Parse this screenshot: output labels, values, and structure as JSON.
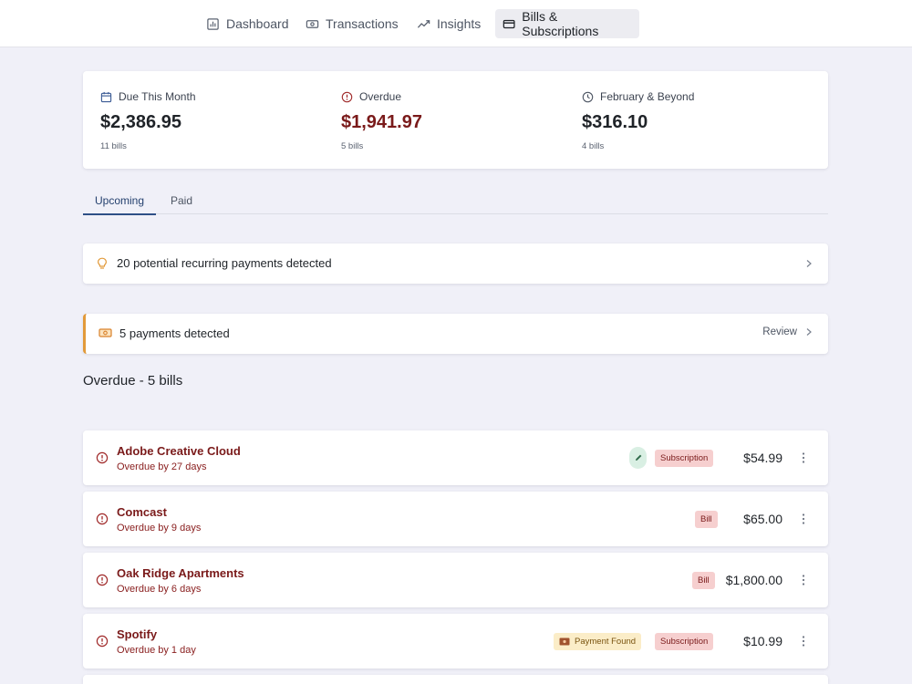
{
  "nav": {
    "items": [
      {
        "label": "Dashboard"
      },
      {
        "label": "Transactions"
      },
      {
        "label": "Insights"
      },
      {
        "label": "Bills & Subscriptions"
      }
    ]
  },
  "summary": {
    "due_this_month": {
      "label": "Due This Month",
      "amount": "$2,386.95",
      "count": "11 bills"
    },
    "overdue": {
      "label": "Overdue",
      "amount": "$1,941.97",
      "count": "5 bills"
    },
    "february": {
      "label": "February & Beyond",
      "amount": "$316.10",
      "count": "4 bills"
    }
  },
  "tabs": {
    "upcoming": "Upcoming",
    "paid": "Paid"
  },
  "recurring_banner": {
    "text": "20 potential recurring payments detected"
  },
  "payments_banner": {
    "text": "5 payments detected",
    "action": "Review"
  },
  "overdue_section": {
    "title": "Overdue - 5 bills"
  },
  "bills": [
    {
      "name": "Adobe Creative Cloud",
      "status": "Overdue by 27 days",
      "type": "Subscription",
      "amount": "$54.99"
    },
    {
      "name": "Comcast",
      "status": "Overdue by 9 days",
      "type": "Bill",
      "amount": "$65.00"
    },
    {
      "name": "Oak Ridge Apartments",
      "status": "Overdue by 6 days",
      "type": "Bill",
      "amount": "$1,800.00"
    },
    {
      "name": "Spotify",
      "status": "Overdue by 1 day",
      "type": "Subscription",
      "payment_found": "Payment Found",
      "amount": "$10.99"
    }
  ],
  "colors": {
    "overdue_red": "#7a1a1a",
    "accent_blue": "#2e4f86",
    "warning_orange": "#e29a3a",
    "background": "#f0f0f8"
  }
}
